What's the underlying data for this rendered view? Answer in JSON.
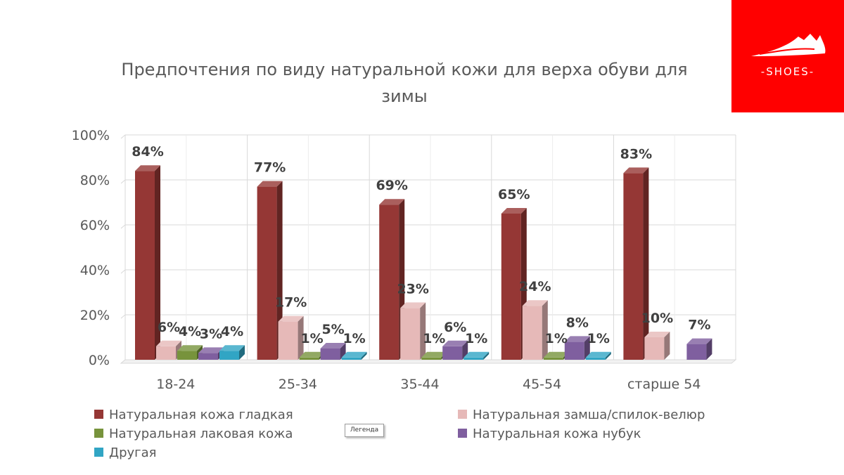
{
  "logo": {
    "text": "-SHOES-",
    "bg": "#ff0000"
  },
  "tooltip": {
    "text": "Легенда"
  },
  "chart_data": {
    "type": "bar",
    "title": "Предпочтения по виду натуральной кожи для верха обуви для зимы",
    "title_lines": [
      "Предпочтения по виду натуральной кожи для верха обуви для",
      "зимы"
    ],
    "categories": [
      "18-24",
      "25-34",
      "35-44",
      "45-54",
      "старше 54"
    ],
    "ylim": [
      0,
      100
    ],
    "yticks": [
      "0%",
      "20%",
      "40%",
      "60%",
      "80%",
      "100%"
    ],
    "grid": true,
    "legend_position": "bottom",
    "series": [
      {
        "name": "Натуральная кожа гладкая",
        "color": "#953735",
        "values": [
          84,
          77,
          69,
          65,
          83
        ]
      },
      {
        "name": "Натуральная замша/спилок-велюр",
        "color": "#e6b9b8",
        "values": [
          6,
          17,
          23,
          24,
          10
        ]
      },
      {
        "name": "Натуральная лаковая кожа",
        "color": "#77933c",
        "values": [
          4,
          1,
          1,
          1,
          null
        ]
      },
      {
        "name": "Натуральная кожа нубук",
        "color": "#7f5f9f",
        "values": [
          3,
          5,
          6,
          8,
          7
        ]
      },
      {
        "name": "Другая",
        "color": "#31a5c4",
        "values": [
          4,
          1,
          1,
          1,
          null
        ]
      }
    ]
  }
}
